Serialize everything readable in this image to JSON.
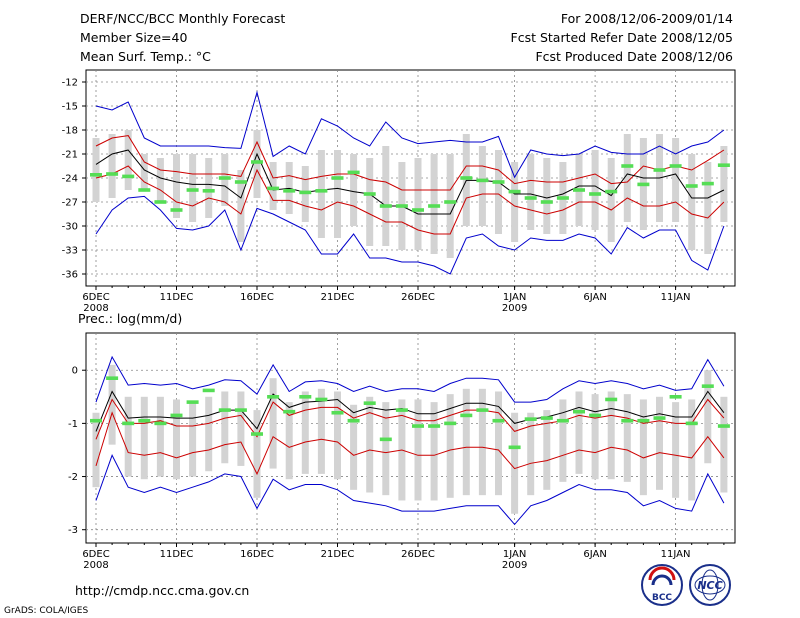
{
  "header": {
    "title": "DERF/NCC/BCC Monthly Forecast",
    "member_size": "Member Size=40",
    "variable": "Mean Surf. Temp.: °C",
    "period": "For 2008/12/06-2009/01/14",
    "fcst_started": "Fcst Started Refer Date 2008/12/05",
    "fcst_produced": "Fcst Produced Date 2008/12/06"
  },
  "colors": {
    "ensemble_mean": "#000000",
    "spread_inner": "#cc0000",
    "spread_outer": "#0000cc",
    "observation": "#55dd55",
    "member_range": "#d3d3d3"
  },
  "footer": {
    "url": "http://cmdp.ncc.cma.gov.cn",
    "credit": "GrADS: COLA/IGES",
    "logo_bcc": "BCC",
    "logo_ncc": "NCC"
  },
  "chart_data": [
    {
      "type": "line",
      "title": "Mean Surf. Temp.: °C",
      "xlabel": "",
      "ylabel": "",
      "ylim": [
        -37.5,
        -10.5
      ],
      "yticks": [
        -12,
        -15,
        -18,
        -21,
        -24,
        -27,
        -30,
        -33,
        -36
      ],
      "xticks": [
        {
          "day": 0,
          "label": "6DEC",
          "sub": "2008"
        },
        {
          "day": 5,
          "label": "11DEC",
          "sub": ""
        },
        {
          "day": 10,
          "label": "16DEC",
          "sub": ""
        },
        {
          "day": 15,
          "label": "21DEC",
          "sub": ""
        },
        {
          "day": 20,
          "label": "26DEC",
          "sub": ""
        },
        {
          "day": 26,
          "label": "1JAN",
          "sub": "2009"
        },
        {
          "day": 31,
          "label": "6JAN",
          "sub": ""
        },
        {
          "day": 36,
          "label": "11JAN",
          "sub": ""
        }
      ],
      "days": 40,
      "series": [
        {
          "name": "max",
          "color": "#0000cc",
          "values": [
            -15.0,
            -15.5,
            -14.5,
            -19.0,
            -20.0,
            -20.0,
            -20.0,
            -20.0,
            -20.2,
            -20.3,
            -13.3,
            -21.3,
            -20.0,
            -21.0,
            -16.6,
            -17.5,
            -19.0,
            -20.0,
            -17.0,
            -19.0,
            -19.7,
            -19.5,
            -19.3,
            -19.5,
            -19.5,
            -18.8,
            -23.9,
            -20.5,
            -21.0,
            -21.2,
            -21.0,
            -20.0,
            -20.8,
            -21.0,
            -21.0,
            -20.0,
            -21.0,
            -20.0,
            -19.5,
            -18.0
          ]
        },
        {
          "name": "p75",
          "color": "#cc0000",
          "values": [
            -20.0,
            -19.0,
            -18.7,
            -22.0,
            -23.0,
            -23.2,
            -23.5,
            -23.5,
            -23.5,
            -23.8,
            -19.5,
            -24.0,
            -23.7,
            -24.2,
            -23.8,
            -23.5,
            -23.5,
            -24.2,
            -24.5,
            -25.5,
            -25.5,
            -25.5,
            -25.5,
            -22.5,
            -22.5,
            -23.0,
            -24.7,
            -24.3,
            -24.5,
            -24.5,
            -24.0,
            -23.5,
            -24.7,
            -24.5,
            -22.5,
            -23.0,
            -22.5,
            -23.0,
            -21.8,
            -20.5
          ]
        },
        {
          "name": "mean",
          "color": "#000000",
          "values": [
            -22.3,
            -21.0,
            -20.5,
            -23.0,
            -24.0,
            -24.5,
            -24.8,
            -24.8,
            -25.0,
            -26.5,
            -21.0,
            -25.5,
            -25.3,
            -25.8,
            -25.5,
            -25.3,
            -25.7,
            -26.0,
            -27.5,
            -27.5,
            -28.5,
            -28.5,
            -28.5,
            -24.3,
            -24.3,
            -24.5,
            -26.0,
            -26.0,
            -26.5,
            -26.0,
            -25.0,
            -25.0,
            -26.2,
            -23.5,
            -24.0,
            -24.0,
            -23.5,
            -26.5,
            -26.5,
            -25.5
          ]
        },
        {
          "name": "p25",
          "color": "#cc0000",
          "values": [
            -24.0,
            -23.5,
            -22.5,
            -24.5,
            -25.5,
            -27.0,
            -27.5,
            -26.5,
            -27.0,
            -28.5,
            -23.0,
            -26.8,
            -26.8,
            -27.5,
            -28.0,
            -27.0,
            -27.5,
            -28.5,
            -29.5,
            -29.5,
            -30.5,
            -31.0,
            -31.0,
            -26.5,
            -26.0,
            -26.0,
            -27.5,
            -28.0,
            -28.5,
            -28.0,
            -27.0,
            -27.0,
            -28.0,
            -26.5,
            -27.5,
            -27.5,
            -27.0,
            -28.5,
            -29.0,
            -27.0
          ]
        },
        {
          "name": "min",
          "color": "#0000cc",
          "values": [
            -31.0,
            -28.0,
            -26.5,
            -26.3,
            -28.0,
            -30.3,
            -30.5,
            -30.0,
            -28.0,
            -33.0,
            -27.8,
            -28.5,
            -29.5,
            -30.5,
            -33.5,
            -33.5,
            -31.0,
            -34.0,
            -34.0,
            -34.5,
            -34.5,
            -35.0,
            -36.0,
            -31.5,
            -31.0,
            -32.5,
            -33.0,
            -31.5,
            -31.8,
            -31.8,
            -31.0,
            -31.5,
            -33.5,
            -30.2,
            -31.5,
            -30.5,
            -30.5,
            -34.3,
            -35.5,
            -30.0
          ]
        },
        {
          "name": "range_top",
          "color": "#d3d3d3",
          "values": [
            -19.0,
            -18.5,
            -18.0,
            -21.0,
            -21.5,
            -21.0,
            -21.0,
            -21.5,
            -21.0,
            -23.0,
            -18.0,
            -22.0,
            -22.0,
            -22.5,
            -20.5,
            -20.5,
            -21.0,
            -21.5,
            -20.0,
            -22.0,
            -21.5,
            -21.0,
            -21.0,
            -18.5,
            -20.0,
            -20.5,
            -22.0,
            -21.0,
            -21.5,
            -22.0,
            -21.0,
            -20.5,
            -21.5,
            -18.5,
            -19.0,
            -18.5,
            -19.0,
            -21.0,
            -22.0,
            -20.0
          ]
        },
        {
          "name": "range_bottom",
          "color": "#d3d3d3",
          "values": [
            -27.0,
            -26.5,
            -25.5,
            -25.5,
            -27.0,
            -29.0,
            -29.5,
            -29.0,
            -27.5,
            -32.0,
            -26.5,
            -28.0,
            -28.5,
            -29.5,
            -31.5,
            -31.5,
            -30.0,
            -32.5,
            -32.5,
            -33.0,
            -33.0,
            -33.5,
            -34.0,
            -30.0,
            -30.0,
            -31.0,
            -32.0,
            -30.5,
            -31.0,
            -31.0,
            -30.0,
            -30.5,
            -32.0,
            -29.5,
            -30.5,
            -29.5,
            -29.5,
            -33.0,
            -33.5,
            -29.5
          ]
        },
        {
          "name": "observed",
          "color": "#55dd55",
          "values": [
            -23.6,
            -23.5,
            -23.8,
            -25.5,
            -27.0,
            -28.0,
            -25.5,
            -25.6,
            -24.0,
            -24.5,
            -22.0,
            -25.3,
            -25.6,
            -25.8,
            -25.6,
            -24.0,
            -23.3,
            -26.0,
            -27.5,
            -27.5,
            -28.0,
            -27.5,
            -27.0,
            -24.0,
            -24.3,
            -24.5,
            -25.7,
            -26.5,
            -27.0,
            -26.5,
            -25.5,
            -26.0,
            -25.7,
            -22.5,
            -24.8,
            -23.0,
            -22.5,
            -25.0,
            -24.7,
            -22.4
          ]
        }
      ]
    },
    {
      "type": "line",
      "title": "Prec.: log(mm/d)",
      "xlabel": "",
      "ylabel": "",
      "ylim": [
        -3.25,
        0.7
      ],
      "yticks": [
        0,
        -1,
        -2,
        -3
      ],
      "xticks": [
        {
          "day": 0,
          "label": "6DEC",
          "sub": "2008"
        },
        {
          "day": 5,
          "label": "11DEC",
          "sub": ""
        },
        {
          "day": 10,
          "label": "16DEC",
          "sub": ""
        },
        {
          "day": 15,
          "label": "21DEC",
          "sub": ""
        },
        {
          "day": 20,
          "label": "26DEC",
          "sub": ""
        },
        {
          "day": 26,
          "label": "1JAN",
          "sub": "2009"
        },
        {
          "day": 31,
          "label": "6JAN",
          "sub": ""
        },
        {
          "day": 36,
          "label": "11JAN",
          "sub": ""
        }
      ],
      "days": 40,
      "series": [
        {
          "name": "max",
          "color": "#0000cc",
          "values": [
            -0.6,
            0.25,
            -0.28,
            -0.25,
            -0.28,
            -0.25,
            -0.35,
            -0.28,
            -0.18,
            -0.2,
            -0.45,
            0.1,
            -0.4,
            -0.22,
            -0.2,
            -0.25,
            -0.4,
            -0.3,
            -0.4,
            -0.35,
            -0.35,
            -0.4,
            -0.25,
            -0.15,
            -0.15,
            -0.18,
            -0.6,
            -0.6,
            -0.55,
            -0.35,
            -0.2,
            -0.25,
            -0.2,
            -0.25,
            -0.35,
            -0.28,
            -0.38,
            -0.35,
            0.2,
            -0.3
          ]
        },
        {
          "name": "p75",
          "color": "#cc0000",
          "values": [
            -1.3,
            -0.55,
            -1.0,
            -1.0,
            -0.95,
            -1.05,
            -1.05,
            -1.0,
            -0.9,
            -0.85,
            -1.25,
            -0.6,
            -0.85,
            -0.75,
            -0.7,
            -0.7,
            -0.9,
            -0.8,
            -0.9,
            -0.85,
            -0.95,
            -0.95,
            -0.85,
            -0.75,
            -0.75,
            -0.8,
            -1.15,
            -1.05,
            -1.0,
            -0.95,
            -0.85,
            -0.9,
            -0.85,
            -0.9,
            -1.0,
            -0.95,
            -1.0,
            -1.0,
            -0.55,
            -0.9
          ]
        },
        {
          "name": "mean",
          "color": "#000000",
          "values": [
            -1.15,
            -0.4,
            -0.9,
            -0.88,
            -0.88,
            -0.9,
            -0.9,
            -0.85,
            -0.75,
            -0.75,
            -1.1,
            -0.45,
            -0.7,
            -0.6,
            -0.58,
            -0.55,
            -0.8,
            -0.7,
            -0.75,
            -0.72,
            -0.82,
            -0.82,
            -0.72,
            -0.62,
            -0.62,
            -0.68,
            -1.0,
            -0.92,
            -0.88,
            -0.8,
            -0.7,
            -0.78,
            -0.72,
            -0.78,
            -0.88,
            -0.82,
            -0.88,
            -0.88,
            -0.4,
            -0.8
          ]
        },
        {
          "name": "p25",
          "color": "#cc0000",
          "values": [
            -1.8,
            -0.8,
            -1.55,
            -1.6,
            -1.55,
            -1.65,
            -1.55,
            -1.5,
            -1.4,
            -1.35,
            -1.95,
            -1.25,
            -1.45,
            -1.35,
            -1.3,
            -1.35,
            -1.6,
            -1.5,
            -1.55,
            -1.5,
            -1.6,
            -1.6,
            -1.5,
            -1.45,
            -1.45,
            -1.5,
            -1.85,
            -1.75,
            -1.7,
            -1.6,
            -1.5,
            -1.55,
            -1.45,
            -1.5,
            -1.65,
            -1.55,
            -1.6,
            -1.65,
            -1.25,
            -1.65
          ]
        },
        {
          "name": "min",
          "color": "#0000cc",
          "values": [
            -2.45,
            -1.6,
            -2.2,
            -2.3,
            -2.2,
            -2.3,
            -2.2,
            -2.1,
            -1.95,
            -2.0,
            -2.6,
            -2.05,
            -2.25,
            -2.15,
            -2.15,
            -2.25,
            -2.45,
            -2.5,
            -2.55,
            -2.65,
            -2.65,
            -2.65,
            -2.6,
            -2.55,
            -2.55,
            -2.55,
            -2.9,
            -2.55,
            -2.45,
            -2.3,
            -2.15,
            -2.25,
            -2.25,
            -2.3,
            -2.55,
            -2.45,
            -2.6,
            -2.65,
            -1.95,
            -2.5
          ]
        },
        {
          "name": "range_top",
          "color": "#d3d3d3",
          "values": [
            -0.8,
            0.1,
            -0.5,
            -0.5,
            -0.5,
            -0.55,
            -0.6,
            -0.5,
            -0.4,
            -0.4,
            -0.75,
            -0.15,
            -0.6,
            -0.4,
            -0.35,
            -0.4,
            -0.65,
            -0.5,
            -0.6,
            -0.55,
            -0.55,
            -0.6,
            -0.45,
            -0.35,
            -0.35,
            -0.4,
            -0.8,
            -0.8,
            -0.75,
            -0.55,
            -0.4,
            -0.45,
            -0.4,
            -0.45,
            -0.55,
            -0.5,
            -0.6,
            -0.55,
            0.0,
            -0.5
          ]
        },
        {
          "name": "range_bottom",
          "color": "#d3d3d3",
          "values": [
            -2.2,
            -1.4,
            -2.0,
            -2.05,
            -2.0,
            -2.05,
            -2.0,
            -1.9,
            -1.75,
            -1.8,
            -2.4,
            -1.85,
            -2.05,
            -1.95,
            -1.95,
            -2.05,
            -2.25,
            -2.3,
            -2.35,
            -2.45,
            -2.45,
            -2.45,
            -2.4,
            -2.35,
            -2.35,
            -2.35,
            -2.7,
            -2.35,
            -2.25,
            -2.1,
            -1.95,
            -2.05,
            -2.05,
            -2.1,
            -2.35,
            -2.25,
            -2.4,
            -2.45,
            -1.75,
            -2.3
          ]
        },
        {
          "name": "observed",
          "color": "#55dd55",
          "values": [
            -0.95,
            -0.15,
            -1.0,
            -0.95,
            -1.0,
            -0.85,
            -0.6,
            -0.38,
            -0.75,
            -0.75,
            -1.2,
            -0.5,
            -0.78,
            -0.5,
            -0.55,
            -0.8,
            -0.95,
            -0.62,
            -1.3,
            -0.75,
            -1.05,
            -1.05,
            -1.0,
            -0.85,
            -0.75,
            -0.95,
            -1.45,
            -0.92,
            -0.9,
            -0.95,
            -0.78,
            -0.85,
            -0.55,
            -0.95,
            -0.95,
            -0.9,
            -0.5,
            -1.0,
            -0.3,
            -1.05
          ]
        }
      ]
    }
  ]
}
